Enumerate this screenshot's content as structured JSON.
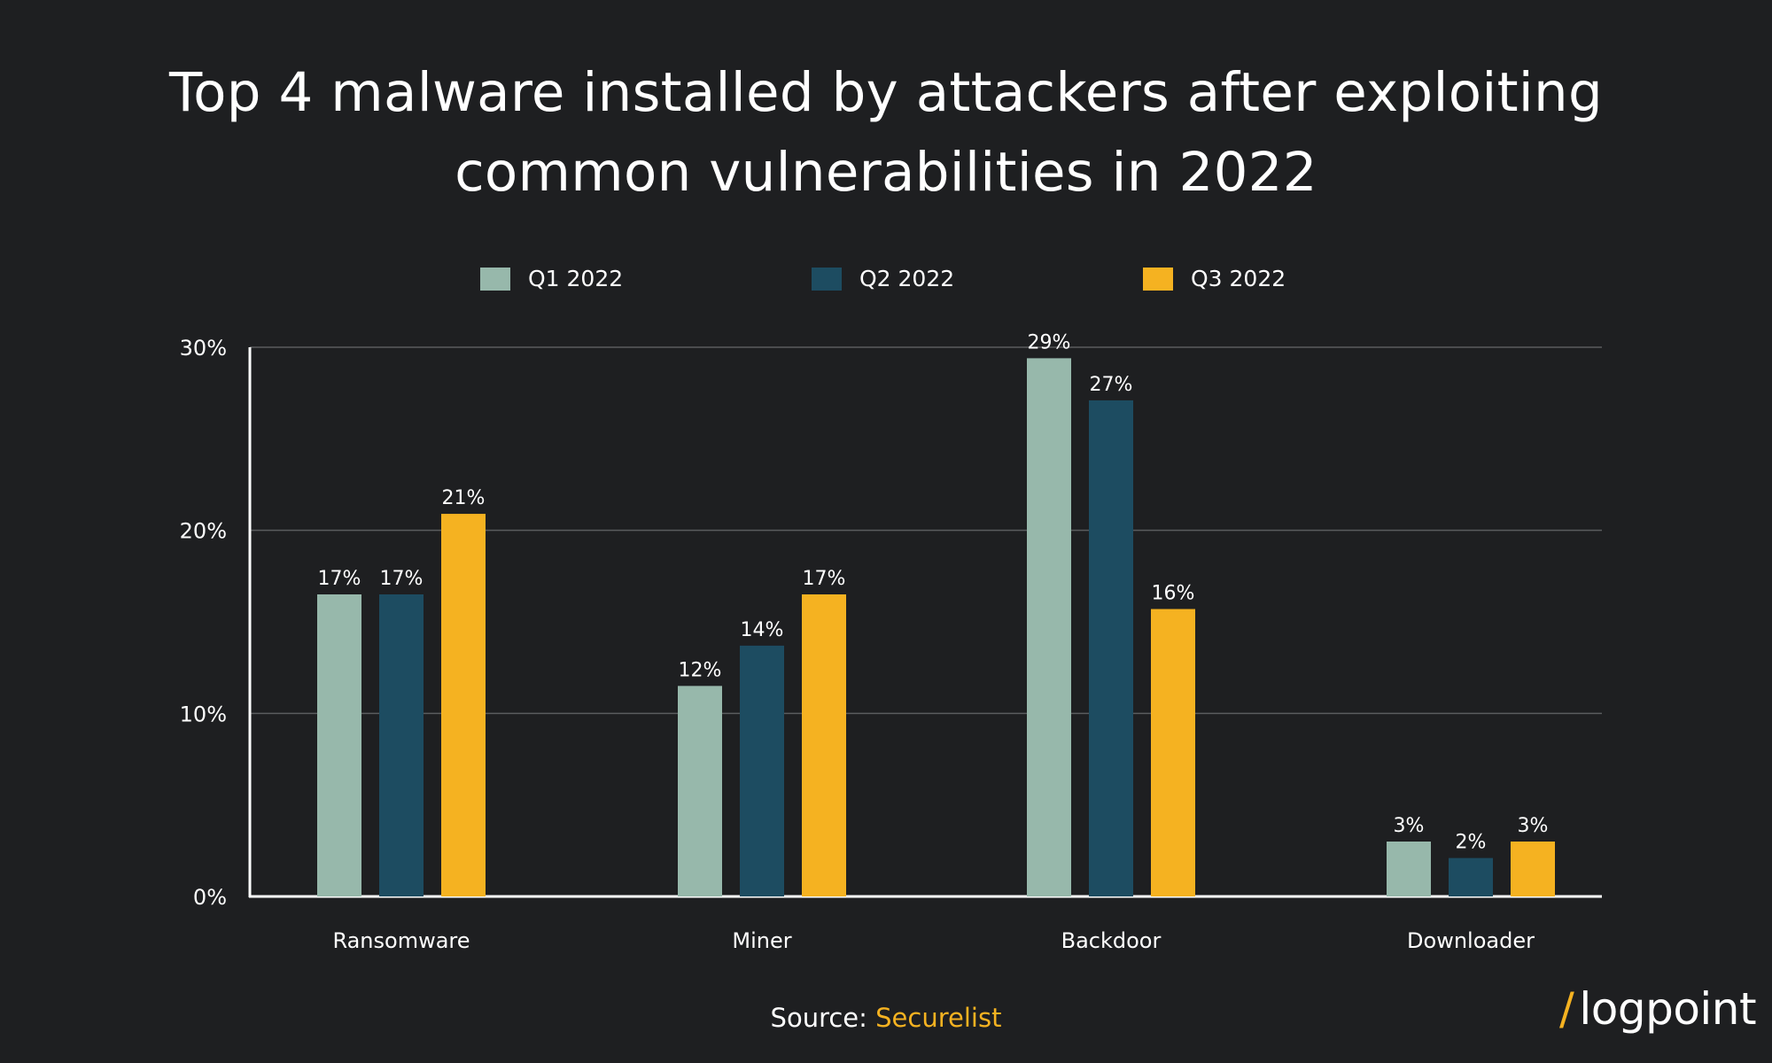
{
  "title_line1": "Top 4 malware installed by attackers after exploiting",
  "title_line2": "common vulnerabilities in 2022",
  "source": {
    "label": "Source:",
    "link": "Securelist"
  },
  "logo": {
    "slash": "/",
    "text": "logpoint"
  },
  "colors": {
    "background": "#1e1f21",
    "q1": "#97b8ab",
    "q2": "#1d4c61",
    "q3": "#f5b221",
    "grid": "#5a5c5e",
    "axis": "#ffffff"
  },
  "chart_data": {
    "type": "bar",
    "title": "Top 4 malware installed by attackers after exploiting common vulnerabilities in 2022",
    "categories": [
      "Ransomware",
      "Miner",
      "Backdoor",
      "Downloader"
    ],
    "series": [
      {
        "name": "Q1 2022",
        "values": [
          16.5,
          11.5,
          29.4,
          3.0
        ],
        "labels": [
          "17%",
          "12%",
          "29%",
          "3%"
        ]
      },
      {
        "name": "Q2 2022",
        "values": [
          16.5,
          13.7,
          27.1,
          2.1
        ],
        "labels": [
          "17%",
          "14%",
          "27%",
          "2%"
        ]
      },
      {
        "name": "Q3 2022",
        "values": [
          20.9,
          16.5,
          15.7,
          3.0
        ],
        "labels": [
          "21%",
          "17%",
          "16%",
          "3%"
        ]
      }
    ],
    "yticks": [
      "0%",
      "10%",
      "20%",
      "30%"
    ],
    "ylim": [
      0,
      30
    ],
    "legend_position": "top-center",
    "grid": true
  }
}
